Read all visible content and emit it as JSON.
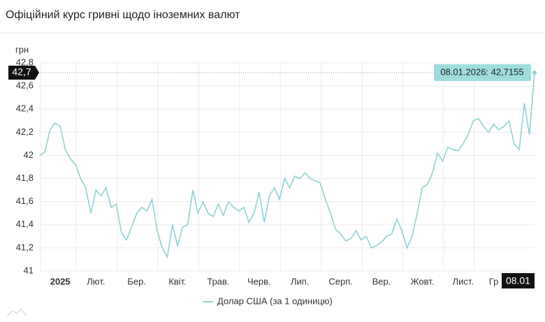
{
  "chart_data": {
    "type": "line",
    "title": "Офіційний курс гривні щодо іноземних валют",
    "y_label": "грн",
    "current_label": "42,7",
    "tooltip": "08.01.2026: 42,7155",
    "categories": [
      null,
      null,
      null,
      null,
      "2025",
      null,
      null,
      null,
      null,
      null,
      null,
      "Лют.",
      null,
      null,
      null,
      null,
      null,
      null,
      null,
      "Бер.",
      null,
      null,
      null,
      null,
      null,
      null,
      null,
      "Квіт.",
      null,
      null,
      null,
      null,
      null,
      null,
      null,
      "Трав.",
      null,
      null,
      null,
      null,
      null,
      null,
      null,
      "Черв.",
      null,
      null,
      null,
      null,
      null,
      null,
      null,
      "Лип.",
      null,
      null,
      null,
      null,
      null,
      null,
      null,
      "Серп.",
      null,
      null,
      null,
      null,
      null,
      null,
      null,
      "Вер.",
      null,
      null,
      null,
      null,
      null,
      null,
      null,
      "Жовт.",
      null,
      null,
      null,
      null,
      null,
      null,
      null,
      "Лист.",
      null,
      null,
      null,
      null,
      null,
      "Гр",
      null,
      null,
      null,
      null,
      null,
      null,
      null,
      "08.01"
    ],
    "series": [
      {
        "name": "Долар США (за 1 одиницю)",
        "color": "#8fd3d3",
        "values": [
          42.0,
          42.03,
          42.22,
          42.28,
          42.25,
          42.05,
          41.97,
          41.92,
          41.8,
          41.72,
          41.5,
          41.7,
          41.65,
          41.72,
          41.55,
          41.58,
          41.33,
          41.27,
          41.38,
          41.5,
          41.55,
          41.52,
          41.62,
          41.35,
          41.2,
          41.12,
          41.4,
          41.22,
          41.38,
          41.4,
          41.7,
          41.5,
          41.6,
          41.5,
          41.47,
          41.58,
          41.48,
          41.6,
          41.55,
          41.52,
          41.55,
          41.42,
          41.5,
          41.68,
          41.42,
          41.65,
          41.72,
          41.62,
          41.8,
          41.72,
          41.82,
          41.8,
          41.85,
          41.8,
          41.78,
          41.76,
          41.62,
          41.5,
          41.36,
          41.32,
          41.26,
          41.28,
          41.35,
          41.27,
          41.3,
          41.2,
          41.22,
          41.25,
          41.3,
          41.32,
          41.45,
          41.35,
          41.2,
          41.3,
          41.5,
          41.72,
          41.75,
          41.85,
          42.02,
          41.95,
          42.07,
          42.05,
          42.04,
          42.1,
          42.18,
          42.3,
          42.32,
          42.25,
          42.2,
          42.27,
          42.22,
          42.25,
          42.3,
          42.1,
          42.05,
          42.45,
          42.18,
          42.7155
        ]
      }
    ],
    "ylim": [
      41,
      42.8
    ],
    "yticks": [
      41,
      {
        "value": 41.2,
        "label": "41,2"
      },
      {
        "value": 41.4,
        "label": "41,4"
      },
      {
        "value": 41.6,
        "label": "41,6"
      },
      {
        "value": 41.8,
        "label": "41,8"
      },
      42,
      {
        "value": 42.2,
        "label": "42,2"
      },
      {
        "value": 42.4,
        "label": "42,4"
      },
      {
        "value": 42.6,
        "label": "42,6"
      },
      {
        "value": 42.8,
        "label": "42,8"
      }
    ],
    "grid": true
  }
}
